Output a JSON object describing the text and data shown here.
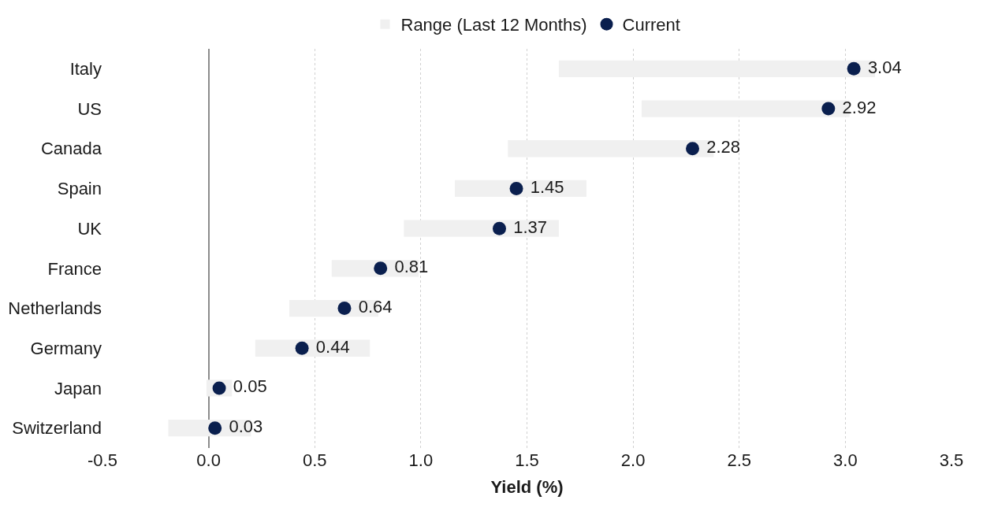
{
  "chart_data": {
    "type": "bar",
    "orientation": "horizontal",
    "xlabel": "Yield (%)",
    "categories": [
      "Italy",
      "US",
      "Canada",
      "Spain",
      "UK",
      "France",
      "Netherlands",
      "Germany",
      "Japan",
      "Switzerland"
    ],
    "series": [
      {
        "name": "Range (Last 12 Months)",
        "color": "#f0f0f0",
        "base": [
          1.65,
          2.04,
          1.41,
          1.16,
          0.92,
          0.58,
          0.38,
          0.22,
          -0.01,
          -0.19
        ],
        "values": [
          1.49,
          0.98,
          0.97,
          0.62,
          0.73,
          0.41,
          0.42,
          0.54,
          0.12,
          0.39
        ]
      },
      {
        "name": "Current",
        "type": "scatter",
        "marker": "circle",
        "color": "#0a1f4e",
        "data_labels": true,
        "values": [
          3.04,
          2.92,
          2.28,
          1.45,
          1.37,
          0.81,
          0.64,
          0.44,
          0.05,
          0.03
        ]
      }
    ],
    "xlim": [
      -0.5,
      3.5
    ],
    "xticks": [
      {
        "value": -0.5,
        "label": "-0.5"
      },
      {
        "value": 0,
        "label": "0.0"
      },
      {
        "value": 0.5,
        "label": "0.5"
      },
      {
        "value": 1,
        "label": "1.0"
      },
      {
        "value": 1.5,
        "label": "1.5"
      },
      {
        "value": 2,
        "label": "2.0"
      },
      {
        "value": 2.5,
        "label": "2.5"
      },
      {
        "value": 3,
        "label": "3.0"
      },
      {
        "value": 3.5,
        "label": "3.5"
      }
    ],
    "grid": "x",
    "legend": "top"
  }
}
